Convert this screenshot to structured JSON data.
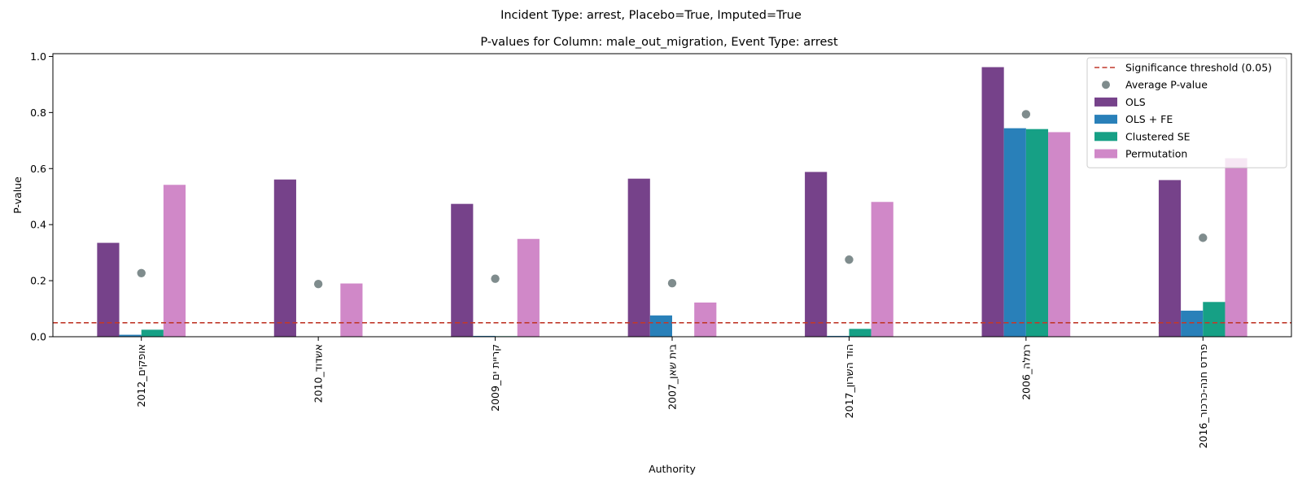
{
  "figure": {
    "suptitle": "Incident Type: arrest, Placebo=True, Imputed=True"
  },
  "chart_data": {
    "type": "bar",
    "title": "P-values for Column: male_out_migration, Event Type: arrest",
    "xlabel": "Authority",
    "ylabel": "P-value",
    "ylim": [
      0,
      1.01
    ],
    "yticks": [
      "0.0",
      "0.2",
      "0.4",
      "0.6",
      "0.8",
      "1.0"
    ],
    "categories": [
      "אופקים_2012",
      "אשדוד_2010",
      "קריית ים_2009",
      "בית שאן_2007",
      "הוד השרון_2017",
      "רמלה_2006",
      "פרדס חנה-כרכור_2016"
    ],
    "series": [
      {
        "name": "OLS",
        "color": "#76428a",
        "values": [
          0.335,
          0.561,
          0.474,
          0.564,
          0.588,
          0.962,
          0.559
        ]
      },
      {
        "name": "OLS + FE",
        "color": "#2980b9",
        "values": [
          0.007,
          0.001,
          0.003,
          0.076,
          0.003,
          0.744,
          0.093
        ]
      },
      {
        "name": "Clustered SE",
        "color": "#16a085",
        "values": [
          0.025,
          0.001,
          0.002,
          0.001,
          0.028,
          0.741,
          0.124
        ]
      },
      {
        "name": "Permutation",
        "color": "#d088c8",
        "values": [
          0.542,
          0.19,
          0.349,
          0.122,
          0.481,
          0.73,
          0.637
        ]
      }
    ],
    "average": {
      "name": "Average P-value",
      "color": "#7f8c8d",
      "values": [
        0.227,
        0.188,
        0.207,
        0.191,
        0.275,
        0.794,
        0.353
      ]
    },
    "threshold": {
      "name": "Significance threshold (0.05)",
      "value": 0.05,
      "color": "#c0392b"
    },
    "legend_placement": "top-right",
    "grid": false
  }
}
